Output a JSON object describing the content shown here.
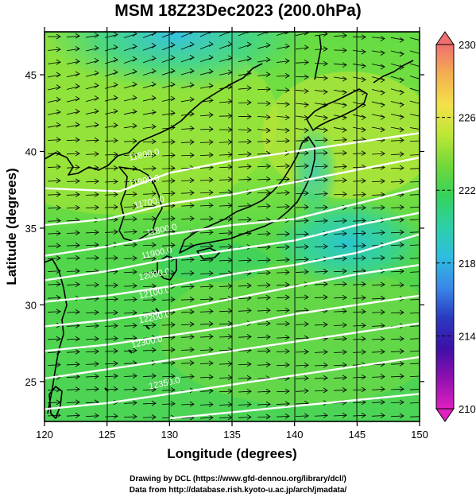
{
  "title": "MSM 18Z23Dec2023 (200.0hPa)",
  "xlabel": "Longitude (degrees)",
  "ylabel": "Latitude  (degrees)",
  "credits": [
    "Drawing by DCL (https://www.gfd-dennou.org/library/dcl/)",
    "Data from http://database.rish.kyoto-u.ac.jp/arch/jmadata/"
  ],
  "map": {
    "lon_range": [
      120,
      150
    ],
    "lat_range": [
      22.4,
      47.8
    ],
    "lon_ticks": [
      120,
      125,
      130,
      135,
      140,
      145,
      150
    ],
    "lat_ticks": [
      25,
      30,
      35,
      40,
      45
    ],
    "field": "temperature (K), shaded",
    "vectors": "wind streamlines, westerly flow",
    "contour_color": "#ffffff",
    "contour_labels": [
      {
        "text": "11800.0",
        "lon": 126.8,
        "lat": 39.4
      },
      {
        "text": "11900.0",
        "lon": 126.8,
        "lat": 37.7
      },
      {
        "text": "11700.0",
        "lon": 127.2,
        "lat": 36.3
      },
      {
        "text": "11800.0",
        "lon": 128.2,
        "lat": 34.5
      },
      {
        "text": "11900.0",
        "lon": 127.8,
        "lat": 33.0
      },
      {
        "text": "12000.0",
        "lon": 127.6,
        "lat": 31.6
      },
      {
        "text": "12100.0",
        "lon": 127.6,
        "lat": 30.4
      },
      {
        "text": "12200.0",
        "lon": 127.6,
        "lat": 28.8
      },
      {
        "text": "12300.0",
        "lon": 127.0,
        "lat": 27.2
      },
      {
        "text": "12350.0",
        "lon": 128.4,
        "lat": 24.5
      }
    ]
  },
  "colorbar": {
    "min": 210,
    "max": 230,
    "tick_labels": [
      "230",
      "226",
      "222",
      "218",
      "214",
      "210"
    ],
    "colors": [
      "#f07070",
      "#f4b050",
      "#f3e24a",
      "#bce635",
      "#72d83a",
      "#34d25c",
      "#2ed0a8",
      "#2ebde0",
      "#3a88e8",
      "#2a3ac0",
      "#3c10a8",
      "#9010b0",
      "#e020c0"
    ]
  }
}
